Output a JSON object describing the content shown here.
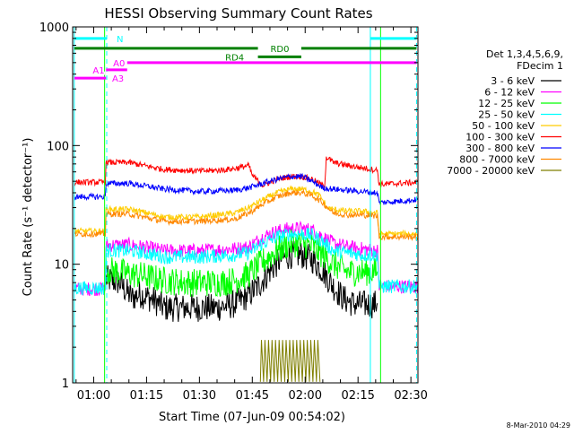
{
  "chart_data": {
    "type": "line",
    "title": "HESSI Observing Summary Count Rates",
    "xlabel": "Start Time (07-Jun-09 00:54:02)",
    "ylabel": "Count Rate (s⁻¹ detector⁻¹)",
    "footer": "8-Mar-2010 04:29",
    "x_unit": "minutes since 00:00 UT",
    "xlim": [
      54.03,
      152
    ],
    "ylim": [
      1,
      1000
    ],
    "yscale": "log",
    "xticks": [
      {
        "value": 60,
        "label": "01:00"
      },
      {
        "value": 75,
        "label": "01:15"
      },
      {
        "value": 90,
        "label": "01:30"
      },
      {
        "value": 105,
        "label": "01:45"
      },
      {
        "value": 120,
        "label": "02:00"
      },
      {
        "value": 135,
        "label": "02:15"
      },
      {
        "value": 150,
        "label": "02:30"
      }
    ],
    "yticks": [
      {
        "value": 1,
        "label": "1"
      },
      {
        "value": 10,
        "label": "10"
      },
      {
        "value": 100,
        "label": "100"
      },
      {
        "value": 1000,
        "label": "1000"
      }
    ],
    "legend": {
      "title_lines": [
        "Det 1,3,4,5,6,9,",
        "FDecim 1"
      ],
      "placement": "right"
    },
    "series": [
      {
        "name": "3 - 6 keV",
        "color": "#000000",
        "noise": 0.12,
        "points": [
          [
            63.5,
            7.5
          ],
          [
            67.5,
            7
          ],
          [
            69,
            6
          ],
          [
            71,
            5.2
          ],
          [
            73,
            5.6
          ],
          [
            74,
            5.5
          ],
          [
            77,
            5
          ],
          [
            80,
            4.3
          ],
          [
            85,
            4.3
          ],
          [
            90,
            4.3
          ],
          [
            95,
            4.3
          ],
          [
            100,
            4.6
          ],
          [
            104,
            5.5
          ],
          [
            107,
            6.7
          ],
          [
            110,
            8.8
          ],
          [
            113,
            11
          ],
          [
            116,
            12
          ],
          [
            119,
            12
          ],
          [
            122,
            11
          ],
          [
            125,
            8.8
          ],
          [
            128,
            6.5
          ],
          [
            131,
            5.1
          ],
          [
            134,
            4.6
          ],
          [
            137,
            4.6
          ],
          [
            138.6,
            4.6
          ],
          [
            139.5,
            4.6
          ],
          [
            140.5,
            4.7
          ]
        ]
      },
      {
        "name": "6 - 12 keV",
        "color": "#ff00ff",
        "noise": 0.06,
        "points": [
          [
            54.5,
            6.2
          ],
          [
            60,
            6.2
          ],
          [
            63.3,
            6.2
          ],
          [
            63.5,
            14.5
          ],
          [
            70,
            14.5
          ],
          [
            74,
            14
          ],
          [
            80,
            13
          ],
          [
            90,
            13
          ],
          [
            100,
            13.5
          ],
          [
            104,
            14
          ],
          [
            108,
            17
          ],
          [
            112,
            19
          ],
          [
            116,
            20
          ],
          [
            119,
            20
          ],
          [
            122,
            19.5
          ],
          [
            125,
            17
          ],
          [
            128,
            15
          ],
          [
            132,
            14
          ],
          [
            136,
            13.5
          ],
          [
            140.5,
            13
          ],
          [
            141,
            6.5
          ],
          [
            152,
            6.5
          ]
        ]
      },
      {
        "name": "12 - 25 keV",
        "color": "#00ff00",
        "noise": 0.12,
        "points": [
          [
            63.5,
            9
          ],
          [
            67,
            8.7
          ],
          [
            70,
            8.3
          ],
          [
            74,
            8
          ],
          [
            80,
            7.3
          ],
          [
            86,
            7
          ],
          [
            90,
            7
          ],
          [
            96,
            7
          ],
          [
            100,
            7.3
          ],
          [
            104,
            8.2
          ],
          [
            108,
            10.5
          ],
          [
            112,
            13
          ],
          [
            116,
            15
          ],
          [
            119,
            15
          ],
          [
            122,
            14
          ],
          [
            125,
            12
          ],
          [
            128,
            10
          ],
          [
            132,
            8.6
          ],
          [
            136,
            8.6
          ],
          [
            140.5,
            8.7
          ]
        ]
      },
      {
        "name": "25 - 50 keV",
        "color": "#00ffff",
        "noise": 0.06,
        "points": [
          [
            54.5,
            6.3
          ],
          [
            60,
            6.3
          ],
          [
            63.3,
            6.3
          ],
          [
            63.5,
            13
          ],
          [
            70,
            13
          ],
          [
            74,
            12.5
          ],
          [
            80,
            11.5
          ],
          [
            90,
            11.5
          ],
          [
            100,
            12
          ],
          [
            104,
            12.5
          ],
          [
            108,
            15
          ],
          [
            112,
            17
          ],
          [
            116,
            18
          ],
          [
            119,
            18
          ],
          [
            122,
            17.5
          ],
          [
            125,
            15.5
          ],
          [
            128,
            13
          ],
          [
            132,
            12.5
          ],
          [
            136,
            12
          ],
          [
            140.5,
            12
          ],
          [
            141,
            6.5
          ],
          [
            152,
            6.5
          ]
        ]
      },
      {
        "name": "50 - 100 keV",
        "color": "#ffcc00",
        "noise": 0.025,
        "points": [
          [
            54.5,
            19
          ],
          [
            62,
            19
          ],
          [
            63.3,
            19
          ],
          [
            63.5,
            29
          ],
          [
            70,
            29
          ],
          [
            74,
            27.5
          ],
          [
            80,
            25
          ],
          [
            90,
            25
          ],
          [
            100,
            27
          ],
          [
            104,
            30
          ],
          [
            108,
            35
          ],
          [
            112,
            40
          ],
          [
            116,
            43
          ],
          [
            119,
            43
          ],
          [
            122,
            41
          ],
          [
            124,
            38
          ],
          [
            125.5,
            33
          ],
          [
            126,
            30
          ],
          [
            128,
            29
          ],
          [
            132,
            28
          ],
          [
            136,
            28
          ],
          [
            140.5,
            27
          ],
          [
            141,
            18
          ],
          [
            152,
            18
          ]
        ]
      },
      {
        "name": "100 - 300 keV",
        "color": "#ff0000",
        "noise": 0.025,
        "points": [
          [
            54.5,
            49
          ],
          [
            62,
            49
          ],
          [
            63.3,
            49
          ],
          [
            63.5,
            72
          ],
          [
            70,
            72
          ],
          [
            74,
            68
          ],
          [
            80,
            63
          ],
          [
            90,
            61
          ],
          [
            96,
            62
          ],
          [
            100,
            64
          ],
          [
            104,
            68
          ],
          [
            105,
            56
          ],
          [
            108,
            46
          ],
          [
            112,
            52
          ],
          [
            116,
            55
          ],
          [
            119,
            55
          ],
          [
            122,
            52
          ],
          [
            125.5,
            45
          ],
          [
            126,
            80
          ],
          [
            128,
            72
          ],
          [
            132,
            68
          ],
          [
            136,
            65
          ],
          [
            140.5,
            62
          ],
          [
            141,
            47
          ],
          [
            152,
            49
          ]
        ]
      },
      {
        "name": "300 - 800 keV",
        "color": "#0000ff",
        "noise": 0.025,
        "points": [
          [
            54.5,
            37
          ],
          [
            62,
            37
          ],
          [
            63.3,
            37
          ],
          [
            63.5,
            48
          ],
          [
            70,
            48
          ],
          [
            74,
            46
          ],
          [
            80,
            43
          ],
          [
            90,
            41
          ],
          [
            100,
            42
          ],
          [
            104,
            44
          ],
          [
            108,
            48
          ],
          [
            112,
            52
          ],
          [
            116,
            55
          ],
          [
            119,
            55
          ],
          [
            122,
            50
          ],
          [
            125,
            44
          ],
          [
            128,
            43
          ],
          [
            132,
            42
          ],
          [
            136,
            41
          ],
          [
            140.5,
            40
          ],
          [
            141,
            33
          ],
          [
            152,
            35
          ]
        ]
      },
      {
        "name": "800 - 7000 keV",
        "color": "#ff8800",
        "noise": 0.025,
        "points": [
          [
            54.5,
            18
          ],
          [
            62,
            18
          ],
          [
            63.3,
            18
          ],
          [
            63.5,
            26.5
          ],
          [
            70,
            26.5
          ],
          [
            74,
            25
          ],
          [
            80,
            23
          ],
          [
            90,
            23
          ],
          [
            100,
            24
          ],
          [
            104,
            27
          ],
          [
            108,
            32
          ],
          [
            112,
            37
          ],
          [
            116,
            40
          ],
          [
            119,
            40
          ],
          [
            122,
            38
          ],
          [
            125,
            33
          ],
          [
            128,
            27
          ],
          [
            132,
            26
          ],
          [
            136,
            26
          ],
          [
            140.5,
            25.5
          ],
          [
            141,
            17
          ],
          [
            152,
            17
          ]
        ]
      },
      {
        "name": "7000 - 20000 keV",
        "color": "#7f7f00",
        "noise": 0.0,
        "points": [
          [
            107.3,
            1.02
          ],
          [
            107.6,
            2.3
          ],
          [
            108.2,
            1.02
          ],
          [
            108.6,
            2.3
          ],
          [
            109.2,
            1.02
          ],
          [
            109.6,
            2.3
          ],
          [
            110.2,
            1.02
          ],
          [
            110.6,
            2.3
          ],
          [
            111.2,
            1.02
          ],
          [
            111.6,
            2.3
          ],
          [
            112.2,
            1.02
          ],
          [
            112.6,
            2.3
          ],
          [
            113.2,
            1.02
          ],
          [
            113.6,
            2.3
          ],
          [
            114.2,
            1.02
          ],
          [
            114.6,
            2.3
          ],
          [
            115.2,
            1.02
          ],
          [
            115.6,
            2.3
          ],
          [
            116.2,
            1.02
          ],
          [
            116.6,
            2.3
          ],
          [
            117.2,
            1.02
          ],
          [
            117.6,
            2.3
          ],
          [
            118.2,
            1.02
          ],
          [
            118.6,
            2.3
          ],
          [
            119.2,
            1.02
          ],
          [
            119.6,
            2.3
          ],
          [
            120.2,
            1.02
          ],
          [
            120.6,
            2.3
          ],
          [
            121.2,
            1.02
          ],
          [
            121.6,
            2.3
          ],
          [
            122.2,
            1.02
          ],
          [
            122.6,
            2.3
          ],
          [
            123.2,
            1.02
          ],
          [
            123.6,
            2.3
          ],
          [
            124.2,
            1.02
          ]
        ]
      }
    ],
    "vertical_lines": [
      {
        "x": 54.5,
        "color": "#00ffff",
        "style": "solid"
      },
      {
        "x": 63.7,
        "color": "#00ffff",
        "style": "dashed"
      },
      {
        "x": 138.5,
        "color": "#00ffff",
        "style": "solid"
      },
      {
        "x": 151.6,
        "color": "#00ffff",
        "style": "dashed"
      },
      {
        "x": 63.1,
        "color": "#00ff00",
        "style": "solid"
      },
      {
        "x": 141.4,
        "color": "#00ff00",
        "style": "solid"
      }
    ],
    "observing_flags": [
      {
        "label": "N",
        "color": "#00ffff",
        "y": 800,
        "segments": [
          [
            54.5,
            63.7
          ],
          [
            138.5,
            151.6
          ]
        ],
        "label_x": 66.5,
        "label_pos": "right"
      },
      {
        "label": "RD0",
        "color": "#008000",
        "y": 660,
        "segments": [
          [
            54.5,
            106.6
          ],
          [
            118.9,
            151.6
          ]
        ],
        "label_x": 112.8,
        "label_pos": "center"
      },
      {
        "label": "RD4",
        "color": "#008000",
        "y": 560,
        "segments": [
          [
            106.6,
            118.9
          ]
        ],
        "label_x": 100,
        "label_pos": "center"
      },
      {
        "label": "A0",
        "color": "#ff00ff",
        "y": 500,
        "segments": [
          [
            69.5,
            151.6
          ]
        ],
        "label_x": 67.2,
        "label_pos": "center"
      },
      {
        "label": "A1",
        "color": "#ff00ff",
        "y": 435,
        "segments": [
          [
            63.5,
            69.5
          ]
        ],
        "label_x": 61.4,
        "label_pos": "center"
      },
      {
        "label": "A3",
        "color": "#ff00ff",
        "y": 370,
        "segments": [
          [
            54.5,
            63.5
          ]
        ],
        "label_x": 66.9,
        "label_pos": "center"
      }
    ]
  }
}
